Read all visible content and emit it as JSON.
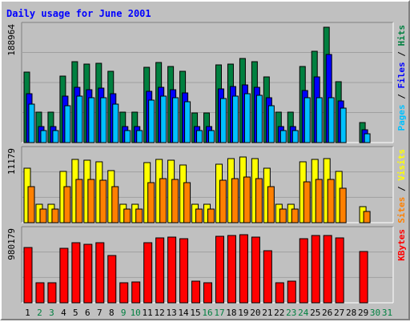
{
  "title": "Daily usage for June 2001",
  "colors": {
    "background": "#c0c0c0",
    "title": "#0000ff",
    "hits": "#008040",
    "files": "#0000ff",
    "pages": "#00c0ff",
    "visits": "#ffff00",
    "sites": "#ff8000",
    "kbytes": "#ff0000",
    "weekday_label": "#000000",
    "weekend_label": "#008040"
  },
  "chart_data": [
    {
      "type": "bar",
      "title": "Daily usage for June 2001",
      "categories": [
        "1",
        "2",
        "3",
        "4",
        "5",
        "6",
        "7",
        "8",
        "9",
        "10",
        "11",
        "12",
        "13",
        "14",
        "15",
        "16",
        "17",
        "18",
        "19",
        "20",
        "21",
        "22",
        "23",
        "24",
        "25",
        "26",
        "27",
        "28",
        "29",
        "30",
        "31"
      ],
      "weekend_days": [
        "2",
        "3",
        "9",
        "10",
        "16",
        "17",
        "23",
        "24",
        "30",
        "31"
      ],
      "max_label": "188964",
      "ylim": [
        0,
        188964
      ],
      "legend": [
        "Pages",
        "Files",
        "Hits"
      ],
      "legend_placement": "right",
      "series": [
        {
          "name": "Hits",
          "values": [
            115000,
            50000,
            50000,
            109000,
            133000,
            128000,
            130000,
            117000,
            50000,
            50000,
            123000,
            131000,
            125000,
            117000,
            49000,
            49000,
            127000,
            129000,
            138000,
            133000,
            108000,
            50000,
            50000,
            125000,
            150000,
            189000,
            100000,
            0,
            33000,
            0,
            0
          ]
        },
        {
          "name": "Files",
          "values": [
            80000,
            26000,
            26000,
            76000,
            90000,
            86000,
            89000,
            80000,
            26000,
            26000,
            84000,
            90000,
            87000,
            82000,
            26000,
            26000,
            88000,
            92000,
            94000,
            91000,
            73000,
            26000,
            26000,
            85000,
            107000,
            145000,
            68000,
            0,
            21000,
            0,
            0
          ]
        },
        {
          "name": "Pages",
          "values": [
            63000,
            20000,
            20000,
            60000,
            76000,
            73000,
            73000,
            63000,
            20000,
            20000,
            70000,
            76000,
            74000,
            67000,
            20000,
            20000,
            72000,
            76000,
            80000,
            77000,
            60000,
            20000,
            20000,
            73000,
            73000,
            74000,
            56000,
            0,
            15000,
            0,
            0
          ]
        }
      ]
    },
    {
      "type": "bar",
      "max_label": "11179",
      "ylim": [
        0,
        11179
      ],
      "legend": [
        "Sites",
        "Visits"
      ],
      "legend_placement": "right",
      "series": [
        {
          "name": "Visits",
          "values": [
            8500,
            2900,
            2900,
            8000,
            9900,
            9800,
            9600,
            8200,
            2900,
            2900,
            9400,
            9900,
            9800,
            9000,
            2900,
            2900,
            9200,
            10000,
            10300,
            10000,
            8600,
            2900,
            2900,
            9500,
            9900,
            10000,
            8100,
            0,
            2500,
            0,
            0
          ]
        },
        {
          "name": "Sites",
          "values": [
            5600,
            2100,
            2100,
            5600,
            6800,
            6800,
            6600,
            5600,
            2100,
            2100,
            6300,
            6900,
            6800,
            6300,
            2100,
            2100,
            6600,
            6900,
            7100,
            6900,
            5700,
            2100,
            2100,
            6400,
            6800,
            6800,
            5400,
            0,
            1800,
            0,
            0
          ]
        }
      ]
    },
    {
      "type": "bar",
      "max_label": "980179",
      "ylim": [
        0,
        980179
      ],
      "legend": [
        "KBytes"
      ],
      "legend_placement": "right",
      "series": [
        {
          "name": "KBytes",
          "values": [
            760000,
            280000,
            270000,
            750000,
            830000,
            800000,
            830000,
            650000,
            280000,
            290000,
            830000,
            890000,
            900000,
            880000,
            300000,
            280000,
            910000,
            930000,
            940000,
            900000,
            720000,
            280000,
            300000,
            880000,
            920000,
            930000,
            890000,
            0,
            700000,
            0,
            0
          ]
        }
      ]
    }
  ]
}
